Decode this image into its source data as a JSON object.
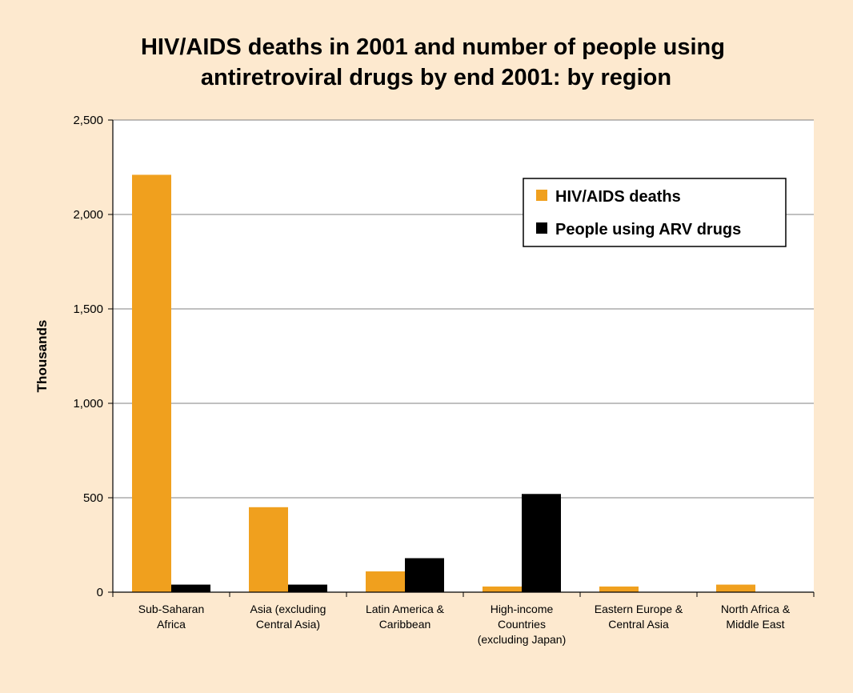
{
  "chart_data": {
    "type": "bar",
    "title": "HIV/AIDS deaths in 2001 and number of people using antiretroviral drugs by end 2001: by region",
    "title_lines": [
      "HIV/AIDS deaths in 2001 and number of people using",
      "antiretroviral drugs by end 2001: by region"
    ],
    "xlabel": "",
    "ylabel": "Thousands",
    "ylim": [
      0,
      2500
    ],
    "yticks": [
      0,
      500,
      1000,
      1500,
      2000,
      2500
    ],
    "ytick_labels": [
      "0",
      "500",
      "1,000",
      "1,500",
      "2,000",
      "2,500"
    ],
    "grid": true,
    "legend_position": "top-right",
    "categories": [
      "Sub-Saharan Africa",
      "Asia (excluding Central Asia)",
      "Latin America & Caribbean",
      "High-income Countries (excluding Japan)",
      "Eastern Europe & Central Asia",
      "North Africa & Middle East"
    ],
    "category_label_lines": [
      [
        "Sub-Saharan",
        "Africa"
      ],
      [
        "Asia (excluding",
        "Central Asia)"
      ],
      [
        "Latin America &",
        "Caribbean"
      ],
      [
        "High-income",
        "Countries",
        "(excluding Japan)"
      ],
      [
        "Eastern Europe &",
        "Central Asia"
      ],
      [
        "North Africa &",
        "Middle East"
      ]
    ],
    "series": [
      {
        "name": "HIV/AIDS deaths",
        "color": "#f0a01e",
        "values": [
          2210,
          450,
          110,
          30,
          30,
          40
        ]
      },
      {
        "name": "People using ARV drugs",
        "color": "#000000",
        "values": [
          40,
          40,
          180,
          520,
          0,
          0
        ]
      }
    ],
    "colors": {
      "background": "#fde9cf",
      "plot_area": "#ffffff",
      "grid": "#808080"
    }
  }
}
